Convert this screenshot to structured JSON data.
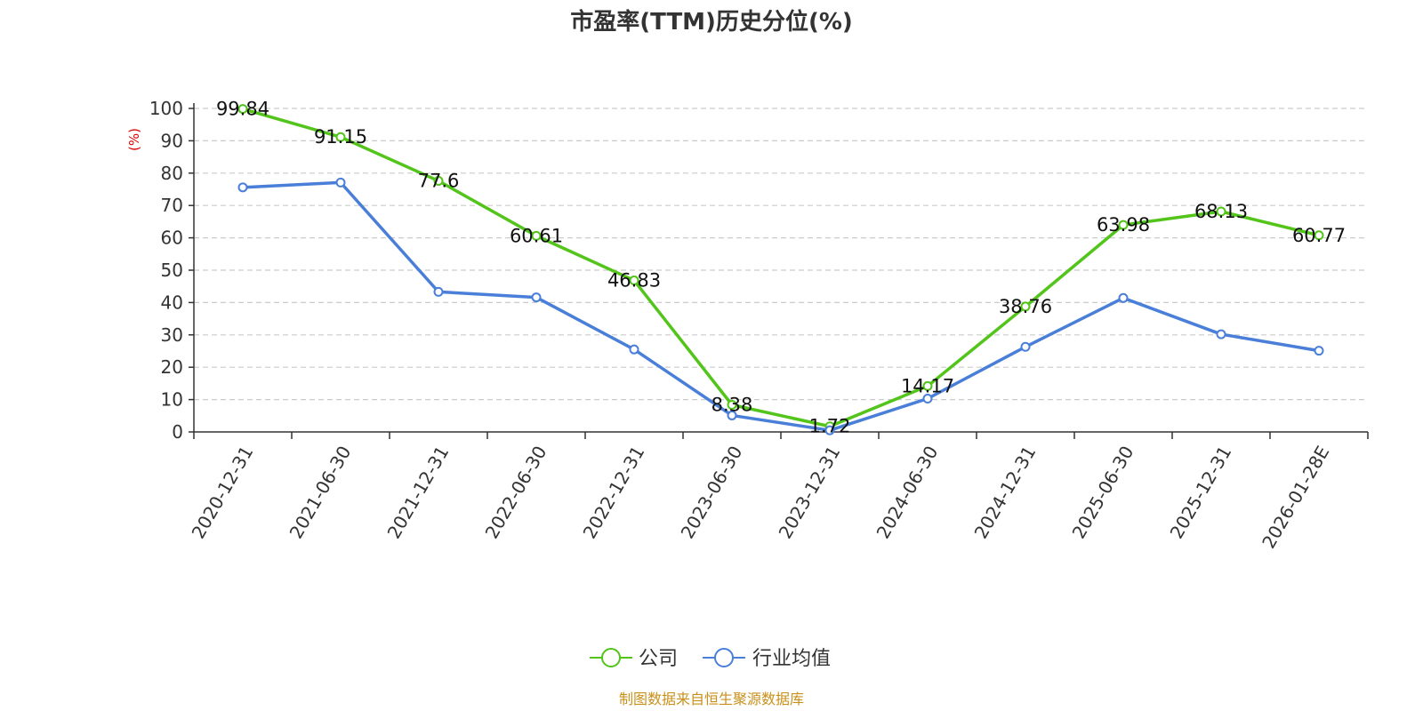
{
  "chart_data": {
    "type": "line",
    "title": "市盈率(TTM)历史分位(%)",
    "ylabel": "(%)",
    "ylim": [
      0,
      100
    ],
    "yticks": [
      "0",
      "10",
      "20",
      "30",
      "40",
      "50",
      "60",
      "70",
      "80",
      "90",
      "100"
    ],
    "categories": [
      "2020-12-31",
      "2021-06-30",
      "2021-12-31",
      "2022-06-30",
      "2022-12-31",
      "2023-06-30",
      "2023-12-31",
      "2024-06-30",
      "2024-12-31",
      "2025-06-30",
      "2025-12-31",
      "2026-01-28E"
    ],
    "grid": true,
    "legend_position": "bottom",
    "series": [
      {
        "name": "公司",
        "color": "#52c41a",
        "values": [
          99.84,
          91.15,
          77.6,
          60.61,
          46.83,
          8.38,
          1.72,
          14.17,
          38.76,
          63.98,
          68.13,
          60.77
        ],
        "labels": [
          "99.84",
          "91.15",
          "77.6",
          "60.61",
          "46.83",
          "8.38",
          "1.72",
          "14.17",
          "38.76",
          "63.98",
          "68.13",
          "60.77"
        ]
      },
      {
        "name": "行业均值",
        "color": "#4a7fd9",
        "values": [
          75.6,
          77.1,
          43.3,
          41.6,
          25.5,
          5.1,
          0.5,
          10.3,
          26.3,
          41.4,
          30.2,
          25.1
        ]
      }
    ]
  },
  "footer": {
    "source": "制图数据来自恒生聚源数据库"
  }
}
